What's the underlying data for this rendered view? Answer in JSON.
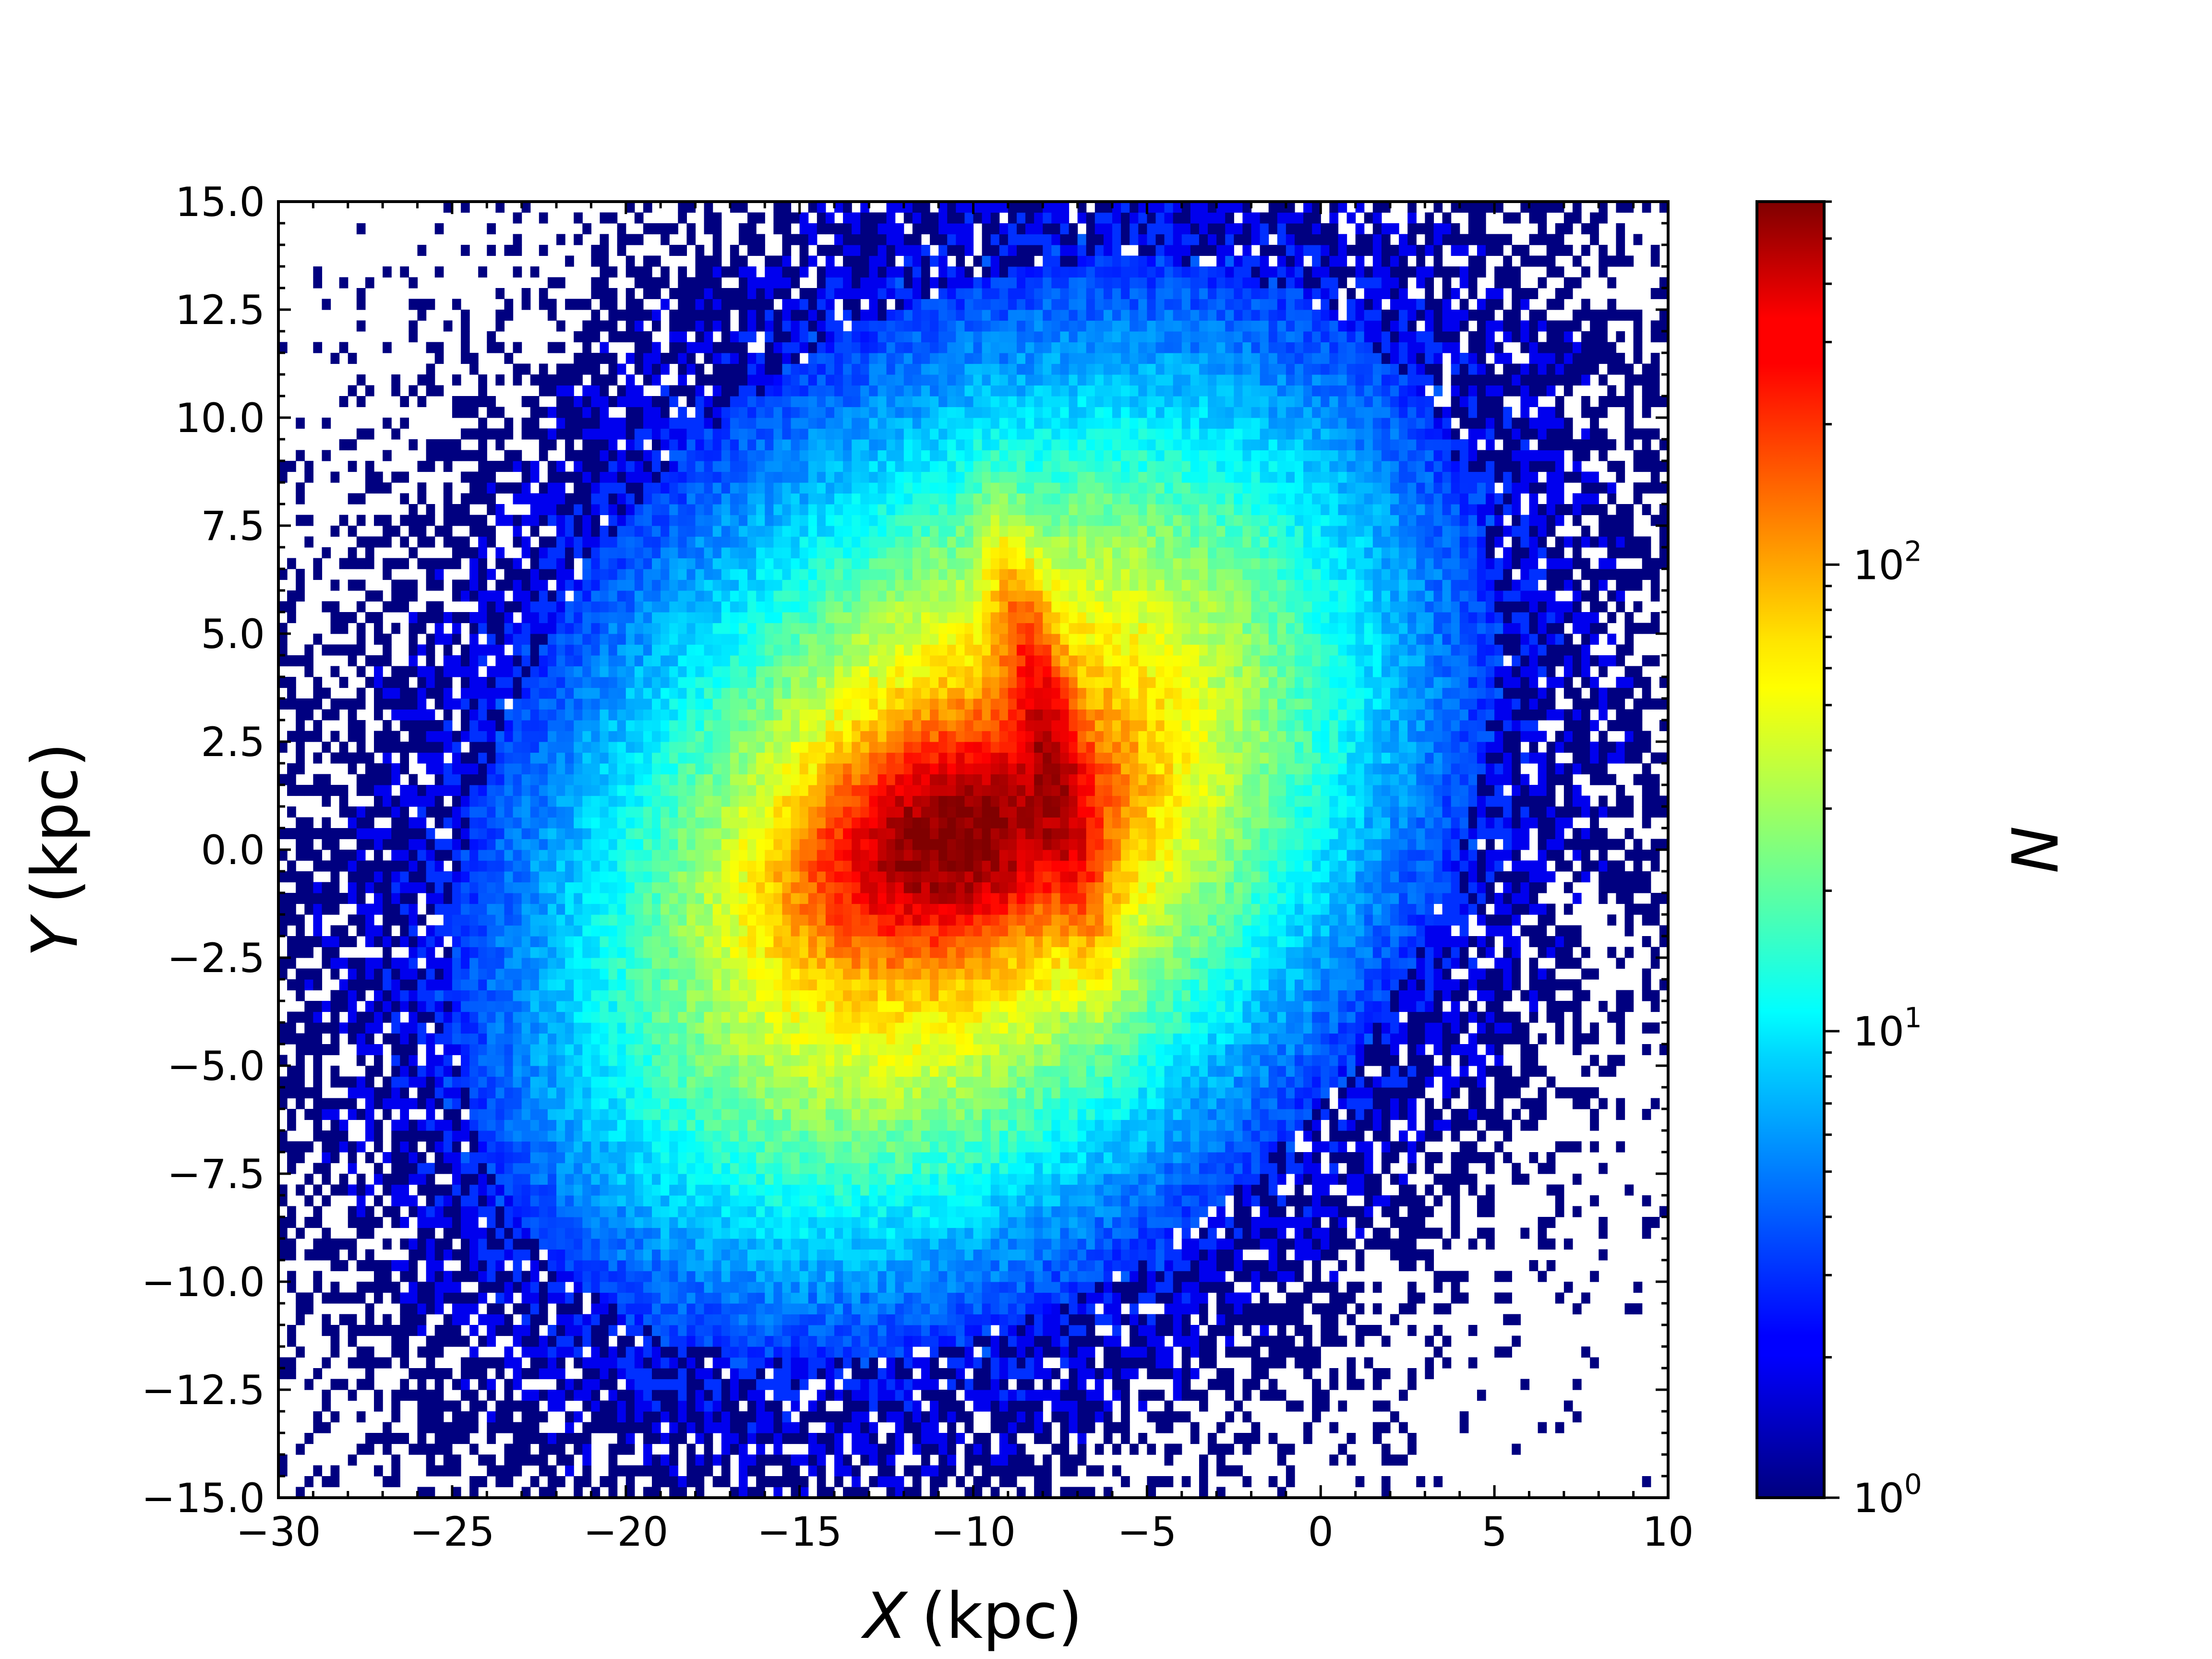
{
  "chart_data": {
    "type": "heatmap",
    "xlabel": {
      "symbol": "X",
      "unit": "(kpc)"
    },
    "ylabel": {
      "symbol": "Y",
      "unit": "(kpc)"
    },
    "colorbar_label": "N",
    "xlim": [
      -30,
      10
    ],
    "ylim": [
      -15,
      15
    ],
    "x_ticks": [
      -30,
      -25,
      -20,
      -15,
      -10,
      -5,
      0,
      5,
      10
    ],
    "y_ticks": [
      -15,
      -12.5,
      -10,
      -7.5,
      -5,
      -2.5,
      0,
      2.5,
      5,
      7.5,
      10,
      12.5,
      15
    ],
    "x_tick_labels": [
      "−30",
      "−25",
      "−20",
      "−15",
      "−10",
      "−5",
      "0",
      "5",
      "10"
    ],
    "y_tick_labels": [
      "−15.0",
      "−12.5",
      "−10.0",
      "−7.5",
      "−5.0",
      "−2.5",
      "0.0",
      "2.5",
      "5.0",
      "7.5",
      "10.0",
      "12.5",
      "15.0"
    ],
    "colorbar": {
      "scale": "log",
      "range": [
        1,
        600
      ],
      "colormap": "jet",
      "tick_values": [
        1,
        10,
        100
      ],
      "tick_labels": [
        {
          "base": "10",
          "exp": "0"
        },
        {
          "base": "10",
          "exp": "1"
        },
        {
          "base": "10",
          "exp": "2"
        }
      ]
    },
    "bin_width": 0.25,
    "density_model": {
      "description": "2D histogram of star counts; peak ~600 near (-9, 0), a dense elongated bar from (-13, -1) to (-7, 4), sparse outskirts down to counts of 1",
      "peak_count": 600,
      "components": [
        {
          "cx": -10.5,
          "cy": 0.3,
          "sx": 2.2,
          "sy": 1.2,
          "angle_deg": 15,
          "amp": 520
        },
        {
          "cx": -7.8,
          "cy": 2.3,
          "sx": 0.5,
          "sy": 2.3,
          "angle_deg": 15,
          "amp": 260
        },
        {
          "cx": -10.0,
          "cy": 0.5,
          "sx": 4.8,
          "sy": 3.0,
          "angle_deg": 32,
          "amp": 100
        },
        {
          "cx": -10.0,
          "cy": 1.0,
          "sx": 8.5,
          "sy": 6.2,
          "angle_deg": 30,
          "amp": 16
        }
      ]
    }
  }
}
